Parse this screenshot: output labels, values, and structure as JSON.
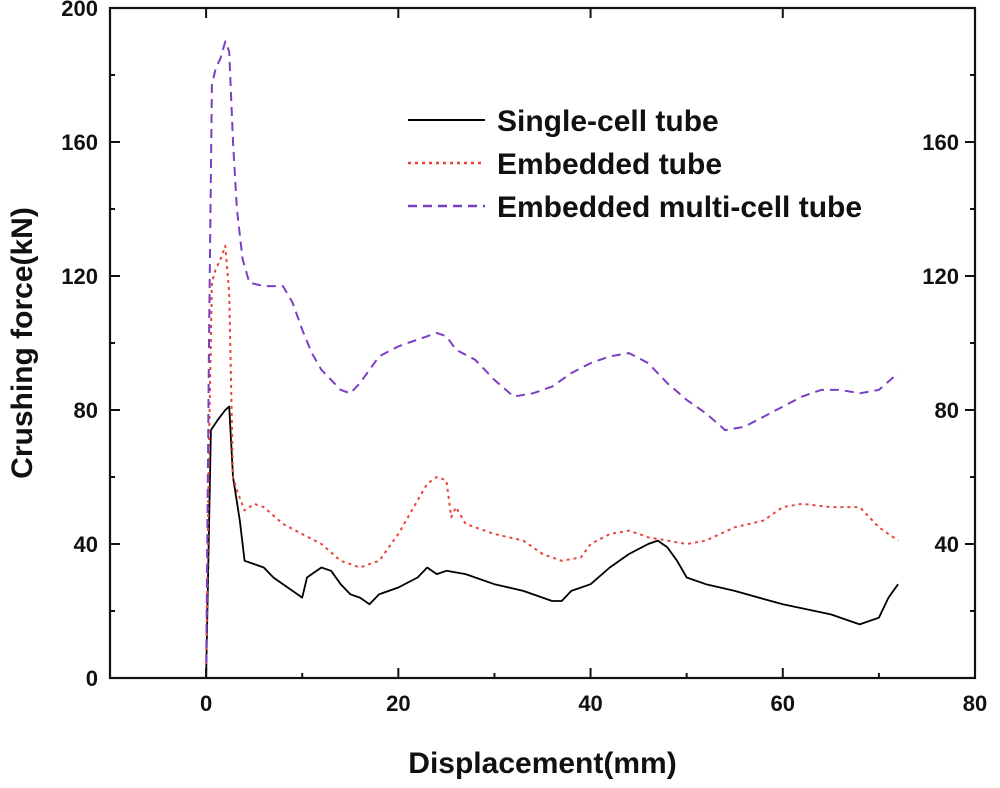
{
  "chart_data": {
    "type": "line",
    "title": "",
    "xlabel": "Displacement(mm)",
    "ylabel": "Crushing force(kN)",
    "xlim": [
      -10,
      80
    ],
    "ylim": [
      0,
      200
    ],
    "xticks": [
      0,
      20,
      40,
      60,
      80
    ],
    "yticks": [
      0,
      40,
      80,
      120,
      160,
      200
    ],
    "right_yticks": [
      40,
      80,
      120,
      160
    ],
    "grid": false,
    "legend_position": "top-right",
    "series": [
      {
        "name": "Single-cell tube",
        "color": "#000000",
        "style": "solid",
        "points": [
          [
            0,
            0
          ],
          [
            0.5,
            74
          ],
          [
            1.2,
            77
          ],
          [
            2.0,
            80
          ],
          [
            2.4,
            81
          ],
          [
            2.8,
            60
          ],
          [
            3.5,
            47
          ],
          [
            4.0,
            35
          ],
          [
            5,
            34
          ],
          [
            6,
            33
          ],
          [
            7,
            30
          ],
          [
            8,
            28
          ],
          [
            9,
            26
          ],
          [
            10,
            24
          ],
          [
            10.5,
            30
          ],
          [
            11,
            31
          ],
          [
            12,
            33
          ],
          [
            13,
            32
          ],
          [
            14,
            28
          ],
          [
            15,
            25
          ],
          [
            16,
            24
          ],
          [
            17,
            22
          ],
          [
            18,
            25
          ],
          [
            20,
            27
          ],
          [
            22,
            30
          ],
          [
            23,
            33
          ],
          [
            24,
            31
          ],
          [
            25,
            32
          ],
          [
            27,
            31
          ],
          [
            30,
            28
          ],
          [
            33,
            26
          ],
          [
            36,
            23
          ],
          [
            37,
            23
          ],
          [
            38,
            26
          ],
          [
            40,
            28
          ],
          [
            42,
            33
          ],
          [
            44,
            37
          ],
          [
            46,
            40
          ],
          [
            47,
            41
          ],
          [
            48,
            39
          ],
          [
            49,
            35
          ],
          [
            50,
            30
          ],
          [
            52,
            28
          ],
          [
            55,
            26
          ],
          [
            60,
            22
          ],
          [
            65,
            19
          ],
          [
            68,
            16
          ],
          [
            70,
            18
          ],
          [
            71,
            24
          ],
          [
            72,
            28
          ]
        ]
      },
      {
        "name": "Embedded tube",
        "color": "#e8453c",
        "style": "dotted",
        "points": [
          [
            0,
            0
          ],
          [
            0.3,
            70
          ],
          [
            0.6,
            118
          ],
          [
            1.0,
            122
          ],
          [
            1.5,
            125
          ],
          [
            2.0,
            129
          ],
          [
            2.4,
            115
          ],
          [
            2.8,
            60
          ],
          [
            3.2,
            56
          ],
          [
            4,
            50
          ],
          [
            5,
            52
          ],
          [
            6,
            51
          ],
          [
            8,
            46
          ],
          [
            10,
            43
          ],
          [
            12,
            40
          ],
          [
            14,
            35
          ],
          [
            16,
            33
          ],
          [
            18,
            35
          ],
          [
            20,
            43
          ],
          [
            22,
            53
          ],
          [
            23,
            58
          ],
          [
            24,
            60
          ],
          [
            25,
            59
          ],
          [
            25.5,
            48
          ],
          [
            26,
            51
          ],
          [
            27,
            46
          ],
          [
            30,
            43
          ],
          [
            33,
            41
          ],
          [
            35,
            37
          ],
          [
            37,
            35
          ],
          [
            39,
            36
          ],
          [
            40,
            40
          ],
          [
            42,
            43
          ],
          [
            44,
            44
          ],
          [
            46,
            42
          ],
          [
            48,
            41
          ],
          [
            50,
            40
          ],
          [
            52,
            41
          ],
          [
            55,
            45
          ],
          [
            58,
            47
          ],
          [
            60,
            51
          ],
          [
            62,
            52
          ],
          [
            65,
            51
          ],
          [
            68,
            51
          ],
          [
            70,
            45
          ],
          [
            72,
            41
          ]
        ]
      },
      {
        "name": "Embedded multi-cell tube",
        "color": "#7b3fc4",
        "style": "dashed",
        "points": [
          [
            0,
            0
          ],
          [
            0.3,
            100
          ],
          [
            0.6,
            177
          ],
          [
            1.0,
            182
          ],
          [
            1.5,
            185
          ],
          [
            2.0,
            190
          ],
          [
            2.4,
            187
          ],
          [
            2.8,
            160
          ],
          [
            3.2,
            140
          ],
          [
            3.8,
            125
          ],
          [
            4.5,
            118
          ],
          [
            6,
            117
          ],
          [
            8,
            117
          ],
          [
            9,
            112
          ],
          [
            10,
            104
          ],
          [
            11,
            97
          ],
          [
            12,
            92
          ],
          [
            13,
            89
          ],
          [
            14,
            86
          ],
          [
            15,
            85
          ],
          [
            16,
            88
          ],
          [
            18,
            96
          ],
          [
            20,
            99
          ],
          [
            22,
            101
          ],
          [
            24,
            103
          ],
          [
            25,
            102
          ],
          [
            26,
            98
          ],
          [
            28,
            95
          ],
          [
            30,
            89
          ],
          [
            32,
            84
          ],
          [
            34,
            85
          ],
          [
            36,
            87
          ],
          [
            38,
            91
          ],
          [
            40,
            94
          ],
          [
            42,
            96
          ],
          [
            44,
            97
          ],
          [
            46,
            94
          ],
          [
            48,
            88
          ],
          [
            50,
            83
          ],
          [
            52,
            79
          ],
          [
            54,
            74
          ],
          [
            56,
            75
          ],
          [
            58,
            78
          ],
          [
            60,
            81
          ],
          [
            62,
            84
          ],
          [
            64,
            86
          ],
          [
            66,
            86
          ],
          [
            68,
            85
          ],
          [
            70,
            86
          ],
          [
            72,
            91
          ]
        ]
      }
    ]
  }
}
